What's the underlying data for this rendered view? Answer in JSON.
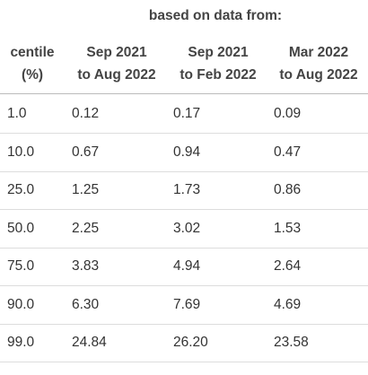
{
  "header": {
    "caption": "based on data from:",
    "columns": [
      [
        "centile",
        "(%)"
      ],
      [
        "Sep 2021",
        "to Aug 2022"
      ],
      [
        "Sep 2021",
        "to Feb 2022"
      ],
      [
        "Mar 2022",
        "to Aug 2022"
      ]
    ]
  },
  "table": {
    "rows": [
      [
        "1.0",
        "0.12",
        "0.17",
        "0.09"
      ],
      [
        "10.0",
        "0.67",
        "0.94",
        "0.47"
      ],
      [
        "25.0",
        "1.25",
        "1.73",
        "0.86"
      ],
      [
        "50.0",
        "2.25",
        "3.02",
        "1.53"
      ],
      [
        "75.0",
        "3.83",
        "4.94",
        "2.64"
      ],
      [
        "90.0",
        "6.30",
        "7.69",
        "4.69"
      ],
      [
        "99.0",
        "24.84",
        "26.20",
        "23.58"
      ]
    ]
  }
}
